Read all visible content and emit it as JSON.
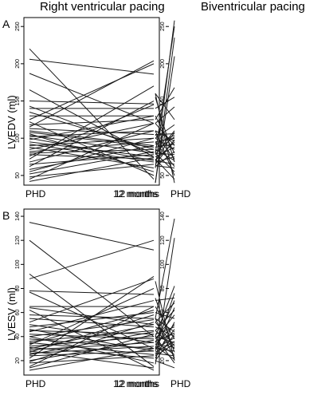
{
  "columns": {
    "left": "Right ventricular pacing",
    "right": "Biventricular pacing"
  },
  "panels": {
    "a": "A",
    "b": "B"
  },
  "ylabels": {
    "top": "LVEDV (ml)",
    "bottom": "LVESV (ml)"
  },
  "chart_data": [
    {
      "type": "line",
      "panel": "A",
      "column": "Right ventricular pacing",
      "ylabel": "LVEDV (ml)",
      "categories": [
        "PHD",
        "12 months"
      ],
      "yticks": [
        50,
        100,
        150,
        200,
        250
      ],
      "ylim": [
        37,
        262
      ],
      "grid": false,
      "lines": [
        [
          220,
          45
        ],
        [
          206,
          186
        ],
        [
          187,
          120
        ],
        [
          165,
          75
        ],
        [
          150,
          146
        ],
        [
          143,
          80
        ],
        [
          140,
          140
        ],
        [
          135,
          85
        ],
        [
          130,
          130
        ],
        [
          125,
          200
        ],
        [
          122,
          50
        ],
        [
          118,
          125
        ],
        [
          115,
          204
        ],
        [
          113,
          105
        ],
        [
          110,
          90
        ],
        [
          108,
          88
        ],
        [
          106,
          55
        ],
        [
          104,
          80
        ],
        [
          102,
          110
        ],
        [
          100,
          70
        ],
        [
          98,
          130
        ],
        [
          95,
          75
        ],
        [
          92,
          68
        ],
        [
          90,
          100
        ],
        [
          88,
          60
        ],
        [
          85,
          120
        ],
        [
          82,
          95
        ],
        [
          80,
          85
        ],
        [
          78,
          72
        ],
        [
          76,
          145
        ],
        [
          72,
          170
        ],
        [
          68,
          110
        ],
        [
          65,
          78
        ],
        [
          62,
          150
        ],
        [
          58,
          90
        ],
        [
          55,
          100
        ],
        [
          52,
          82
        ],
        [
          48,
          65
        ],
        [
          45,
          120
        ],
        [
          42,
          74
        ]
      ]
    },
    {
      "type": "line",
      "panel": "A",
      "column": "Biventricular pacing",
      "ylabel": "",
      "categories": [
        "PHD",
        "12 months"
      ],
      "yticks": [
        50,
        100,
        150,
        200,
        250
      ],
      "ylim": [
        37,
        262
      ],
      "grid": false,
      "lines": [
        [
          258,
          60
        ],
        [
          250,
          80
        ],
        [
          235,
          40
        ],
        [
          210,
          40
        ],
        [
          168,
          125
        ],
        [
          155,
          140
        ],
        [
          142,
          120
        ],
        [
          125,
          160
        ],
        [
          118,
          100
        ],
        [
          110,
          78
        ],
        [
          108,
          70
        ],
        [
          106,
          105
        ],
        [
          104,
          92
        ],
        [
          102,
          82
        ],
        [
          100,
          95
        ],
        [
          98,
          65
        ],
        [
          96,
          110
        ],
        [
          95,
          70
        ],
        [
          92,
          88
        ],
        [
          90,
          120
        ],
        [
          88,
          75
        ],
        [
          85,
          100
        ],
        [
          82,
          62
        ],
        [
          80,
          130
        ],
        [
          78,
          80
        ],
        [
          75,
          68
        ],
        [
          72,
          105
        ],
        [
          70,
          85
        ],
        [
          68,
          155
        ],
        [
          65,
          70
        ],
        [
          62,
          95
        ],
        [
          60,
          63
        ],
        [
          55,
          80
        ],
        [
          50,
          110
        ],
        [
          45,
          72
        ],
        [
          40,
          160
        ]
      ]
    },
    {
      "type": "line",
      "panel": "B",
      "column": "Right ventricular pacing",
      "ylabel": "LVESV (ml)",
      "categories": [
        "PHD",
        "12 months"
      ],
      "yticks": [
        20,
        40,
        60,
        80,
        100,
        120,
        140
      ],
      "ylim": [
        8,
        146
      ],
      "grid": false,
      "lines": [
        [
          135,
          112
        ],
        [
          120,
          40
        ],
        [
          92,
          15
        ],
        [
          88,
          120
        ],
        [
          78,
          75
        ],
        [
          77,
          30
        ],
        [
          65,
          65
        ],
        [
          64,
          50
        ],
        [
          62,
          12
        ],
        [
          58,
          55
        ],
        [
          55,
          48
        ],
        [
          52,
          88
        ],
        [
          50,
          35
        ],
        [
          48,
          60
        ],
        [
          46,
          28
        ],
        [
          45,
          42
        ],
        [
          44,
          70
        ],
        [
          42,
          38
        ],
        [
          40,
          18
        ],
        [
          40,
          54
        ],
        [
          38,
          30
        ],
        [
          36,
          45
        ],
        [
          35,
          25
        ],
        [
          34,
          62
        ],
        [
          33,
          80
        ],
        [
          32,
          40
        ],
        [
          31,
          22
        ],
        [
          30,
          50
        ],
        [
          29,
          35
        ],
        [
          28,
          14
        ],
        [
          27,
          58
        ],
        [
          26,
          32
        ],
        [
          25,
          44
        ],
        [
          24,
          28
        ],
        [
          22,
          90
        ],
        [
          20,
          37
        ],
        [
          19,
          52
        ],
        [
          18,
          24
        ],
        [
          15,
          65
        ],
        [
          14,
          42
        ],
        [
          12,
          30
        ]
      ]
    },
    {
      "type": "line",
      "panel": "B",
      "column": "Biventricular pacing",
      "ylabel": "",
      "categories": [
        "PHD",
        "12 months"
      ],
      "yticks": [
        20,
        40,
        60,
        80,
        100,
        120,
        140
      ],
      "ylim": [
        8,
        146
      ],
      "grid": false,
      "lines": [
        [
          138,
          55
        ],
        [
          122,
          17
        ],
        [
          82,
          40
        ],
        [
          76,
          30
        ],
        [
          72,
          70
        ],
        [
          70,
          35
        ],
        [
          68,
          52
        ],
        [
          64,
          28
        ],
        [
          62,
          45
        ],
        [
          58,
          38
        ],
        [
          55,
          60
        ],
        [
          52,
          22
        ],
        [
          50,
          33
        ],
        [
          48,
          42
        ],
        [
          46,
          25
        ],
        [
          44,
          55
        ],
        [
          43,
          36
        ],
        [
          42,
          20
        ],
        [
          40,
          48
        ],
        [
          39,
          30
        ],
        [
          38,
          65
        ],
        [
          36,
          27
        ],
        [
          35,
          40
        ],
        [
          34,
          24
        ],
        [
          32,
          52
        ],
        [
          31,
          34
        ],
        [
          30,
          45
        ],
        [
          28,
          30
        ],
        [
          27,
          72
        ],
        [
          25,
          36
        ],
        [
          24,
          26
        ],
        [
          22,
          55
        ],
        [
          21,
          32
        ],
        [
          20,
          86
        ],
        [
          18,
          40
        ],
        [
          14,
          20
        ]
      ]
    }
  ]
}
